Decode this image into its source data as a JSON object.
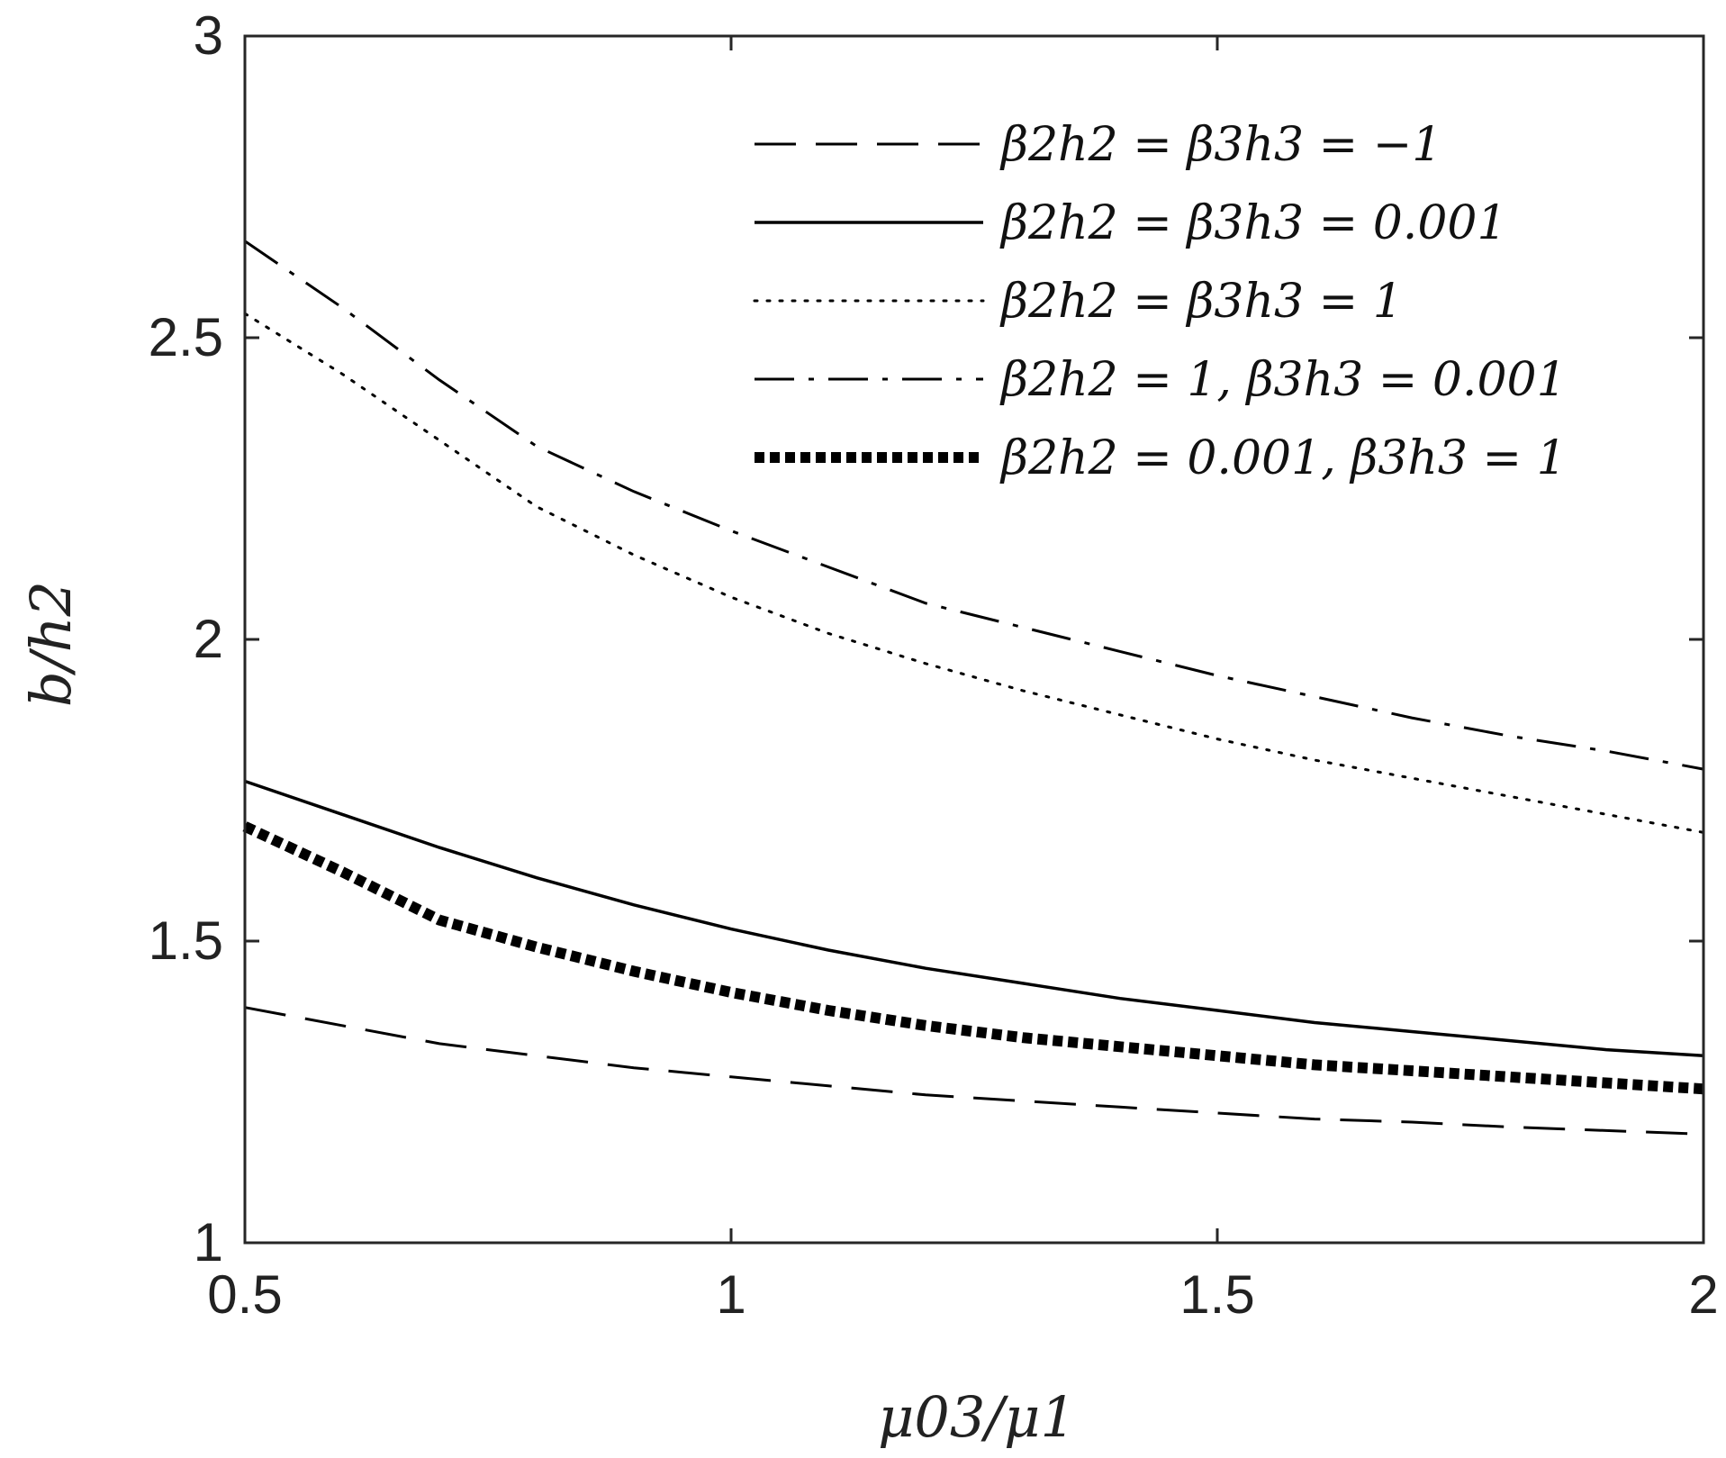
{
  "chart_data": {
    "type": "line",
    "title": "",
    "xlabel": "μ03/μ1",
    "ylabel": "b/h2",
    "xlim": [
      0.5,
      2
    ],
    "ylim": [
      1,
      3
    ],
    "xticks": [
      0.5,
      1,
      1.5,
      2
    ],
    "xtick_labels": [
      "0.5",
      "1",
      "1.5",
      "2"
    ],
    "yticks": [
      1,
      1.5,
      2,
      2.5,
      3
    ],
    "ytick_labels": [
      "1",
      "1.5",
      "2",
      "2.5",
      "3"
    ],
    "grid": false,
    "legend_position": "top-right",
    "series": [
      {
        "name": "β2h2 = β3h3 = −1",
        "style": "dashed",
        "x": [
          0.5,
          0.6,
          0.7,
          0.8,
          0.9,
          1.0,
          1.1,
          1.2,
          1.3,
          1.4,
          1.5,
          1.6,
          1.7,
          1.8,
          1.9,
          2.0
        ],
        "y": [
          1.39,
          1.36,
          1.33,
          1.31,
          1.29,
          1.275,
          1.26,
          1.245,
          1.235,
          1.225,
          1.215,
          1.205,
          1.2,
          1.192,
          1.186,
          1.18
        ]
      },
      {
        "name": "β2h2 = β3h3 = 0.001",
        "style": "solid",
        "x": [
          0.5,
          0.6,
          0.7,
          0.8,
          0.9,
          1.0,
          1.1,
          1.2,
          1.3,
          1.4,
          1.5,
          1.6,
          1.7,
          1.8,
          1.9,
          2.0
        ],
        "y": [
          1.765,
          1.71,
          1.655,
          1.605,
          1.56,
          1.52,
          1.485,
          1.455,
          1.43,
          1.405,
          1.385,
          1.365,
          1.35,
          1.335,
          1.32,
          1.31
        ]
      },
      {
        "name": "β2h2 = β3h3 = 1",
        "style": "dotted",
        "x": [
          0.5,
          0.6,
          0.7,
          0.8,
          0.9,
          1.0,
          1.1,
          1.2,
          1.3,
          1.4,
          1.5,
          1.6,
          1.7,
          1.8,
          1.9,
          2.0
        ],
        "y": [
          2.54,
          2.44,
          2.33,
          2.22,
          2.14,
          2.07,
          2.01,
          1.96,
          1.915,
          1.875,
          1.835,
          1.8,
          1.77,
          1.74,
          1.71,
          1.68
        ]
      },
      {
        "name": "β2h2 = 1, β3h3 = 0.001",
        "style": "dashdot",
        "x": [
          0.5,
          0.6,
          0.7,
          0.8,
          0.9,
          1.0,
          1.1,
          1.2,
          1.3,
          1.4,
          1.5,
          1.6,
          1.7,
          1.8,
          1.9,
          2.0
        ],
        "y": [
          2.66,
          2.55,
          2.43,
          2.32,
          2.245,
          2.18,
          2.12,
          2.06,
          2.02,
          1.98,
          1.94,
          1.905,
          1.87,
          1.84,
          1.815,
          1.785
        ]
      },
      {
        "name": "β2h2 = 0.001, β3h3 = 1",
        "style": "thick-dotted",
        "x": [
          0.5,
          0.6,
          0.7,
          0.8,
          0.9,
          1.0,
          1.1,
          1.2,
          1.3,
          1.4,
          1.5,
          1.6,
          1.7,
          1.8,
          1.9,
          2.0
        ],
        "y": [
          1.69,
          1.615,
          1.535,
          1.49,
          1.45,
          1.415,
          1.385,
          1.36,
          1.34,
          1.325,
          1.31,
          1.295,
          1.285,
          1.275,
          1.265,
          1.255
        ]
      }
    ]
  }
}
